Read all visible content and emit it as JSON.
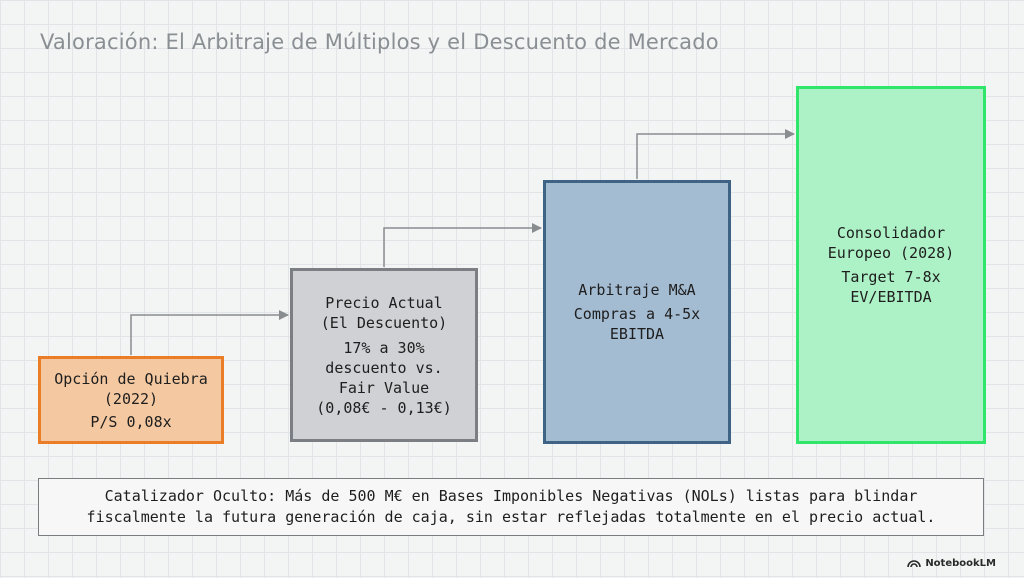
{
  "title": "Valoración: El Arbitraje de Múltiplos y el Descuento de Mercado",
  "boxes": [
    {
      "lines": [
        "Opción de Quiebra",
        "(2022)",
        "P/S 0,08x"
      ],
      "border_color": "#ea7d26",
      "fill_color": "#f4c9a2"
    },
    {
      "lines": [
        "Precio Actual",
        "(El Descuento)",
        "17% a 30%",
        "descuento vs.",
        "Fair Value",
        "(0,08€ - 0,13€)"
      ],
      "border_color": "#7b7e82",
      "fill_color": "#cfd1d5"
    },
    {
      "lines": [
        "Arbitraje M&A",
        "Compras a 4-5x",
        "EBITDA"
      ],
      "border_color": "#3f6385",
      "fill_color": "#a4bcd2"
    },
    {
      "lines": [
        "Consolidador",
        "Europeo (2028)",
        "Target 7-8x",
        "EV/EBITDA"
      ],
      "border_color": "#2fe66a",
      "fill_color": "#adf2c6"
    }
  ],
  "note": {
    "lines": [
      "Catalizador Oculto: Más de 500 M€ en Bases Imponibles Negativas (NOLs) listas para blindar",
      "fiscalmente la futura generación de caja, sin estar reflejadas totalmente en el precio actual."
    ]
  },
  "brand": {
    "label": "NotebookLM",
    "icon": "notebooklm-logo-icon"
  }
}
